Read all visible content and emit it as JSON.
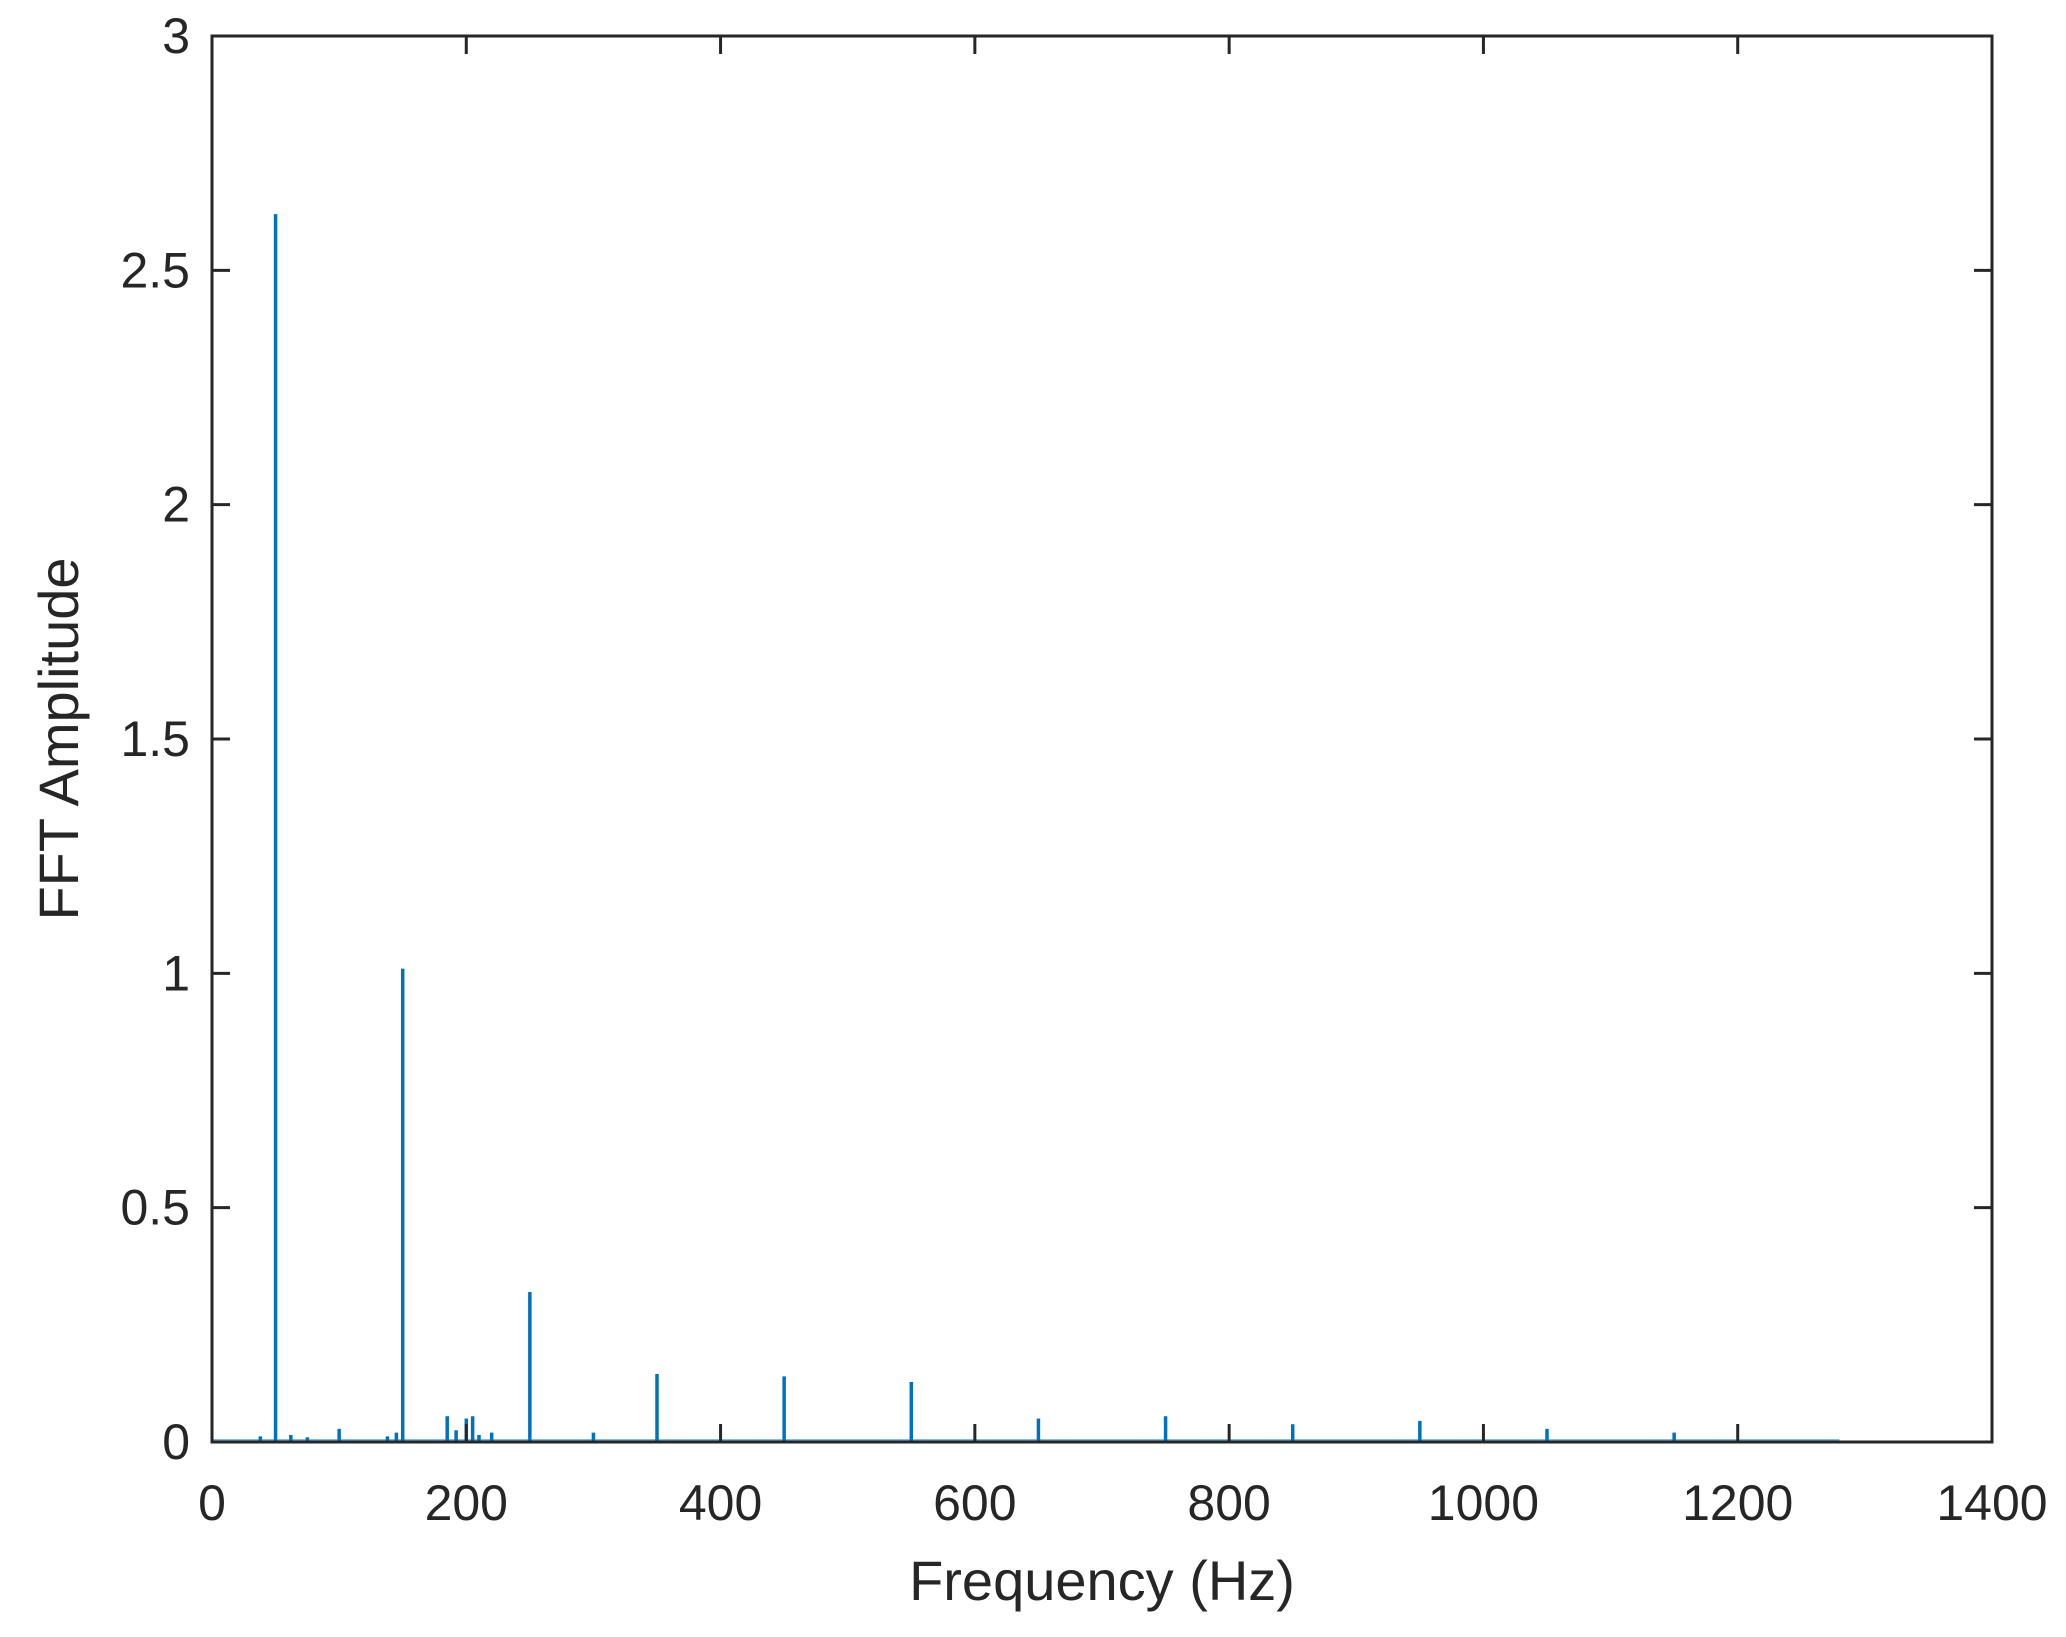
{
  "chart_data": {
    "type": "line",
    "title": "",
    "xlabel": "Frequency (Hz)",
    "ylabel": "FFT Amplitude",
    "xlim": [
      0,
      1400
    ],
    "ylim": [
      0,
      3
    ],
    "x_ticks": [
      0,
      200,
      400,
      600,
      800,
      1000,
      1200,
      1400
    ],
    "y_ticks": [
      0,
      0.5,
      1,
      1.5,
      2,
      2.5,
      3
    ],
    "x_tick_labels": [
      "0",
      "200",
      "400",
      "600",
      "800",
      "1000",
      "1200",
      "1400"
    ],
    "y_tick_labels": [
      "0",
      "0.5",
      "1",
      "1.5",
      "2",
      "2.5",
      "3"
    ],
    "grid": false,
    "data_extent_hz": [
      0,
      1280
    ],
    "series": [
      {
        "color": "#0072BD",
        "x": [
          38,
          50,
          62,
          75,
          100,
          138,
          145,
          150,
          185,
          192,
          200,
          205,
          210,
          220,
          250,
          300,
          350,
          450,
          550,
          650,
          750,
          850,
          950,
          1050,
          1150
        ],
        "values": [
          0.012,
          2.62,
          0.015,
          0.01,
          0.028,
          0.012,
          0.02,
          1.01,
          0.055,
          0.025,
          0.05,
          0.055,
          0.015,
          0.02,
          0.32,
          0.02,
          0.145,
          0.14,
          0.128,
          0.05,
          0.055,
          0.038,
          0.045,
          0.028,
          0.02
        ]
      }
    ]
  }
}
